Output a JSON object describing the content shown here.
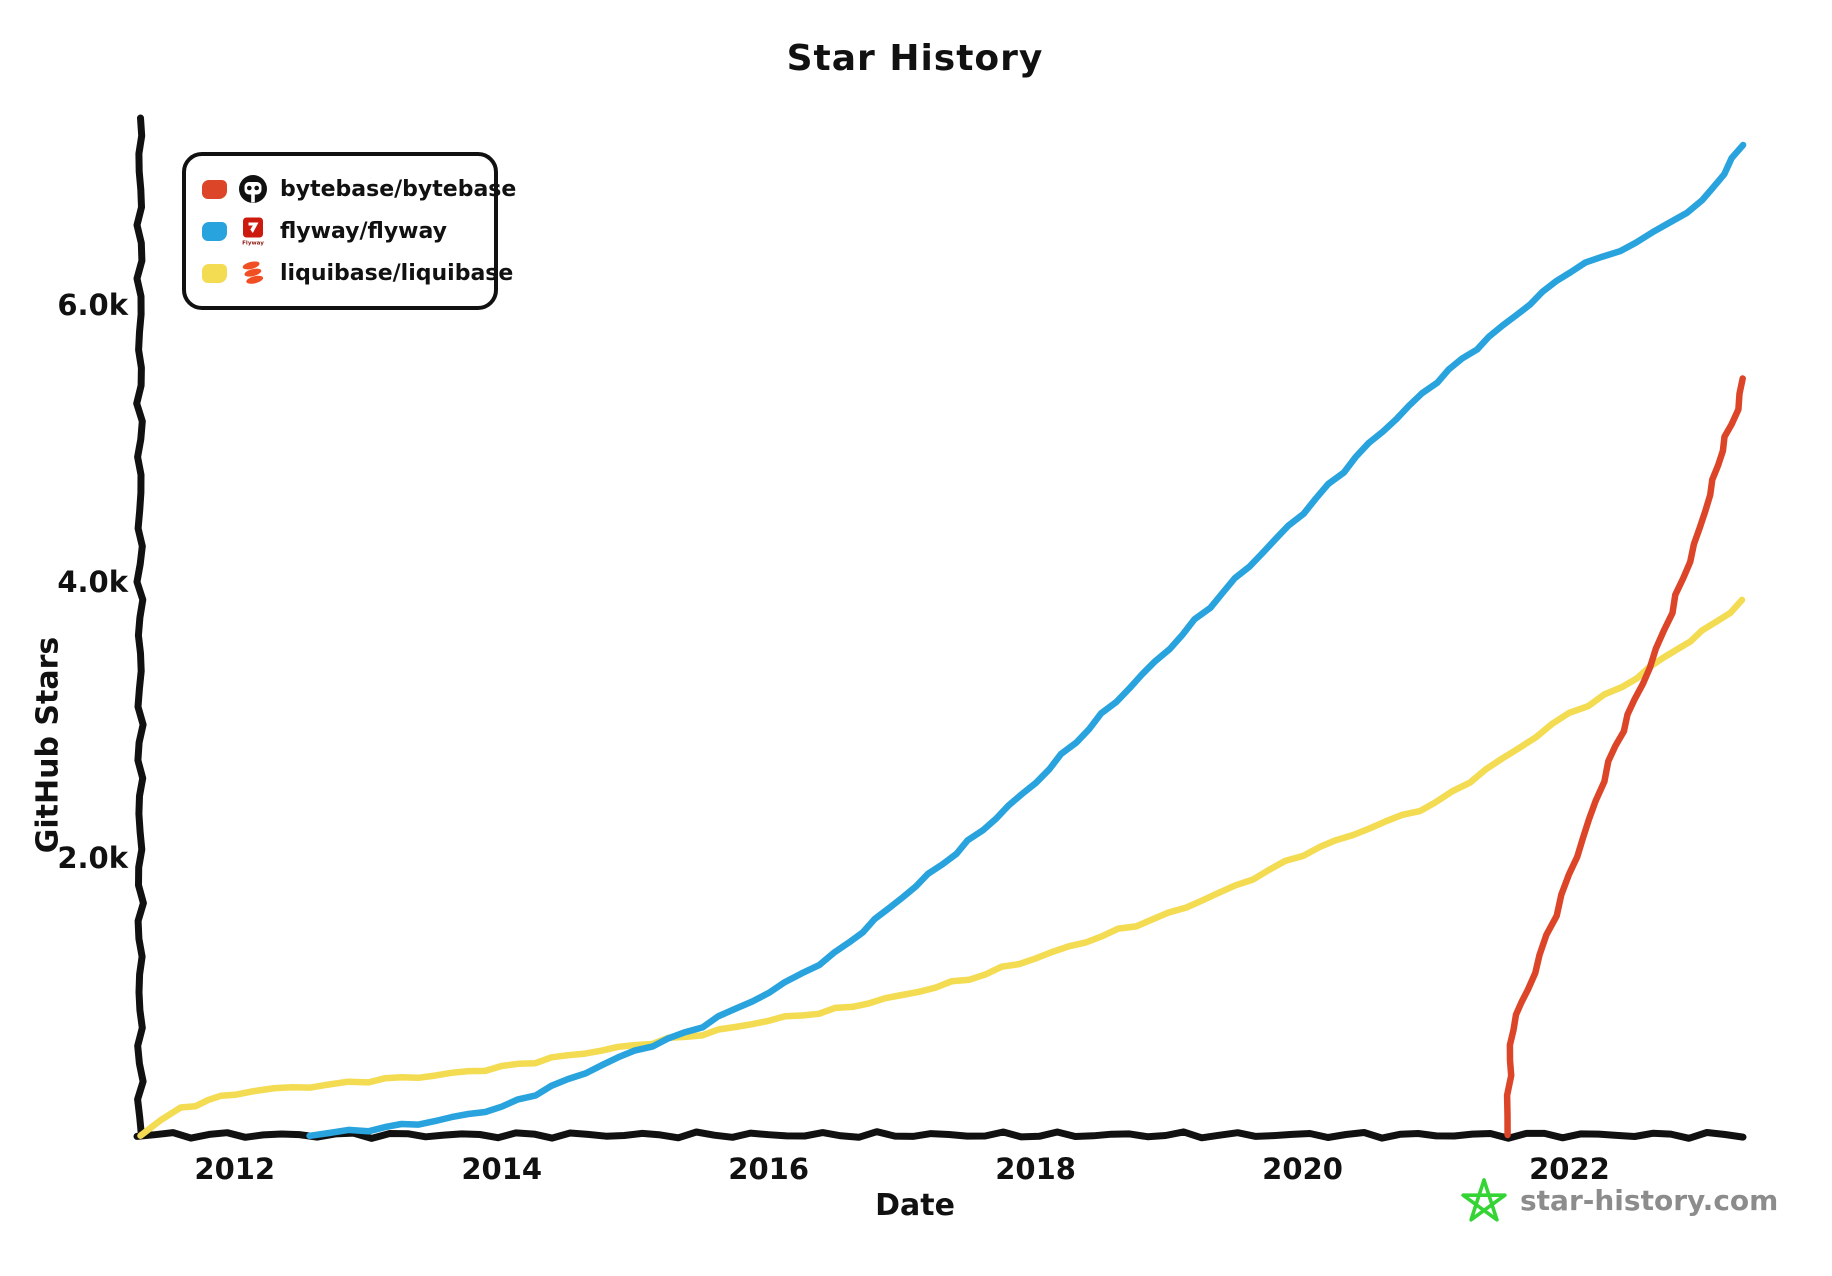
{
  "page": {
    "watermark": "star-history.com"
  },
  "colors": {
    "axis": "#111111",
    "text": "#111111",
    "watermark_text": "#8c8c8c",
    "watermark_star": "#33d433",
    "bytebase_red": "#dd4528",
    "flyway_blue": "#28a3dd",
    "liquibase_yellow": "#f3db52"
  },
  "icons": {
    "bytebase_logo": "black-circle-robot-face-logo",
    "flyway_logo": "red-square-white-arrow-flyway-logo",
    "liquibase_logo": "orange-stacked-discs-logo",
    "watermark_star": "green-doodle-star-icon"
  },
  "chart_data": {
    "type": "line",
    "title": "Star History",
    "xlabel": "Date",
    "ylabel": "GitHub Stars",
    "grid": false,
    "legend_position": "top-left",
    "x_range": [
      2011.29,
      2023.3
    ],
    "y_range": [
      0,
      7340
    ],
    "x_ticks": [
      {
        "value": 2012,
        "label": "2012"
      },
      {
        "value": 2014,
        "label": "2014"
      },
      {
        "value": 2016,
        "label": "2016"
      },
      {
        "value": 2018,
        "label": "2018"
      },
      {
        "value": 2020,
        "label": "2020"
      },
      {
        "value": 2022,
        "label": "2022"
      }
    ],
    "y_ticks": [
      {
        "value": 2000,
        "label": "2.0k"
      },
      {
        "value": 4000,
        "label": "4.0k"
      },
      {
        "value": 6000,
        "label": "6.0k"
      }
    ],
    "series": [
      {
        "name": "bytebase/bytebase",
        "color": "#dd4528",
        "points": [
          [
            2021.53,
            0
          ],
          [
            2021.55,
            430
          ],
          [
            2021.57,
            760
          ],
          [
            2021.6,
            870
          ],
          [
            2021.69,
            1050
          ],
          [
            2021.78,
            1300
          ],
          [
            2021.89,
            1590
          ],
          [
            2022.0,
            1880
          ],
          [
            2022.15,
            2280
          ],
          [
            2022.3,
            2700
          ],
          [
            2022.49,
            3150
          ],
          [
            2022.6,
            3380
          ],
          [
            2022.76,
            3780
          ],
          [
            2022.94,
            4270
          ],
          [
            2023.05,
            4630
          ],
          [
            2023.14,
            4950
          ],
          [
            2023.21,
            5140
          ],
          [
            2023.26,
            5250
          ],
          [
            2023.3,
            5470
          ]
        ]
      },
      {
        "name": "flyway/flyway",
        "color": "#28a3dd",
        "points": [
          [
            2012.56,
            0
          ],
          [
            2013.0,
            40
          ],
          [
            2013.5,
            100
          ],
          [
            2014.0,
            200
          ],
          [
            2014.5,
            400
          ],
          [
            2015.0,
            610
          ],
          [
            2015.25,
            690
          ],
          [
            2015.5,
            790
          ],
          [
            2016.0,
            1030
          ],
          [
            2016.5,
            1310
          ],
          [
            2017.0,
            1720
          ],
          [
            2017.5,
            2120
          ],
          [
            2018.0,
            2550
          ],
          [
            2018.5,
            3040
          ],
          [
            2019.0,
            3520
          ],
          [
            2019.5,
            4020
          ],
          [
            2020.0,
            4500
          ],
          [
            2020.5,
            5000
          ],
          [
            2021.0,
            5450
          ],
          [
            2021.5,
            5850
          ],
          [
            2022.0,
            6250
          ],
          [
            2022.5,
            6450
          ],
          [
            2023.0,
            6750
          ],
          [
            2023.3,
            7160
          ]
        ]
      },
      {
        "name": "liquibase/liquibase",
        "color": "#f3db52",
        "points": [
          [
            2011.29,
            0
          ],
          [
            2011.45,
            110
          ],
          [
            2011.6,
            190
          ],
          [
            2011.8,
            250
          ],
          [
            2012.0,
            300
          ],
          [
            2012.3,
            335
          ],
          [
            2012.7,
            360
          ],
          [
            2013.0,
            395
          ],
          [
            2013.5,
            430
          ],
          [
            2014.0,
            490
          ],
          [
            2014.5,
            575
          ],
          [
            2015.0,
            650
          ],
          [
            2015.25,
            690
          ],
          [
            2015.5,
            730
          ],
          [
            2016.0,
            830
          ],
          [
            2016.5,
            905
          ],
          [
            2017.0,
            1010
          ],
          [
            2017.5,
            1130
          ],
          [
            2018.0,
            1280
          ],
          [
            2018.5,
            1440
          ],
          [
            2019.0,
            1600
          ],
          [
            2019.5,
            1800
          ],
          [
            2020.0,
            2030
          ],
          [
            2020.5,
            2220
          ],
          [
            2021.0,
            2400
          ],
          [
            2021.5,
            2720
          ],
          [
            2022.0,
            3050
          ],
          [
            2022.4,
            3240
          ],
          [
            2022.6,
            3380
          ],
          [
            2023.0,
            3640
          ],
          [
            2023.3,
            3860
          ]
        ]
      }
    ]
  }
}
